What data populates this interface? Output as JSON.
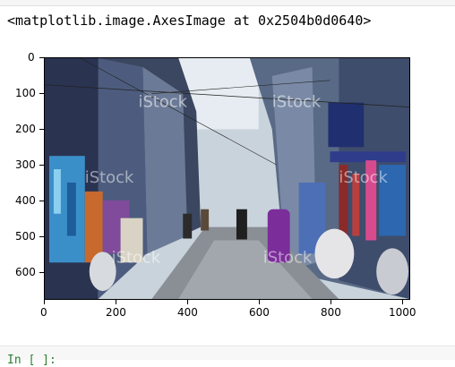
{
  "cell_output": {
    "repr_text": "<matplotlib.image.AxesImage at 0x2504b0d0640>"
  },
  "image_plot": {
    "y_ticks": [
      "0",
      "100",
      "200",
      "300",
      "400",
      "500",
      "600"
    ],
    "x_ticks": [
      "0",
      "200",
      "400",
      "600",
      "800",
      "1000"
    ],
    "watermark": "iStock"
  },
  "next_cell": {
    "prompt_fragment": "In [ ]:"
  }
}
